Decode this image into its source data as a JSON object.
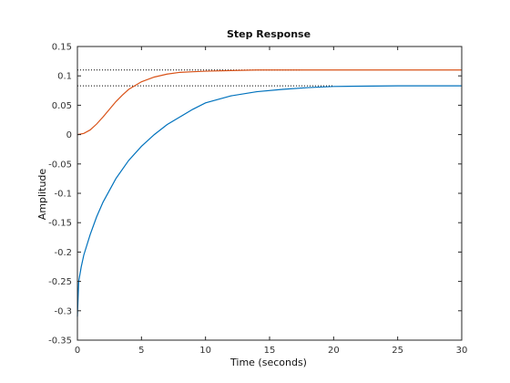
{
  "chart_data": {
    "type": "line",
    "title": "Step Response",
    "xlabel": "Time (seconds)",
    "ylabel": "Amplitude",
    "xlim": [
      0,
      30
    ],
    "ylim": [
      -0.35,
      0.15
    ],
    "xticks": [
      0,
      5,
      10,
      15,
      20,
      25,
      30
    ],
    "yticks": [
      -0.35,
      -0.3,
      -0.25,
      -0.2,
      -0.15,
      -0.1,
      -0.05,
      0,
      0.05,
      0.1,
      0.15
    ],
    "xtick_labels": [
      "0",
      "5",
      "10",
      "15",
      "20",
      "25",
      "30"
    ],
    "ytick_labels": [
      "-0.35",
      "-0.3",
      "-0.25",
      "-0.2",
      "-0.15",
      "-0.1",
      "-0.05",
      "0",
      "0.05",
      "0.1",
      "0.15"
    ],
    "grid": false,
    "series": [
      {
        "color": "#0072bd",
        "x": [
          0,
          0.1,
          0.3,
          0.5,
          1,
          1.5,
          2,
          3,
          4,
          5,
          6,
          7,
          8,
          9,
          10,
          12,
          14,
          16,
          18,
          20,
          25,
          30
        ],
        "y": [
          -0.31,
          -0.25,
          -0.225,
          -0.205,
          -0.17,
          -0.14,
          -0.115,
          -0.075,
          -0.044,
          -0.02,
          0.0,
          0.017,
          0.03,
          0.043,
          0.054,
          0.066,
          0.073,
          0.077,
          0.08,
          0.082,
          0.083,
          0.083
        ]
      },
      {
        "color": "#d95319",
        "x": [
          0,
          0.5,
          1,
          1.5,
          2,
          2.5,
          3,
          3.5,
          4,
          5,
          6,
          7,
          8,
          9,
          10,
          12,
          14,
          17,
          20,
          25,
          30
        ],
        "y": [
          0,
          0.002,
          0.008,
          0.018,
          0.03,
          0.043,
          0.056,
          0.067,
          0.077,
          0.09,
          0.098,
          0.103,
          0.106,
          0.107,
          0.108,
          0.109,
          0.11,
          0.11,
          0.11,
          0.11,
          0.11
        ]
      }
    ],
    "steady_state": [
      {
        "value": 0.083,
        "color": "#000000",
        "x_end": 20
      },
      {
        "value": 0.11,
        "color": "#000000",
        "x_end": 17.5
      }
    ]
  }
}
